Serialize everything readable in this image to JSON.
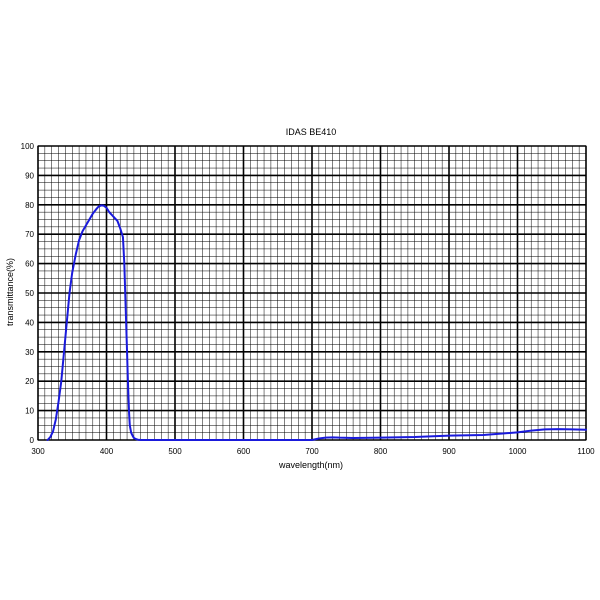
{
  "chart_data": {
    "type": "line",
    "title": "IDAS BE410",
    "xlabel": "wavelength(nm)",
    "ylabel": "transmittance(%)",
    "xlim": [
      300,
      1100
    ],
    "ylim": [
      0,
      100
    ],
    "x_ticks": [
      "300",
      "400",
      "500",
      "600",
      "700",
      "800",
      "900",
      "1000",
      "1100"
    ],
    "y_ticks": [
      "0",
      "10",
      "20",
      "30",
      "40",
      "50",
      "60",
      "70",
      "80",
      "90",
      "100"
    ],
    "grid": true,
    "legend": "none",
    "colors": {
      "line": "#1a1adb",
      "grid_minor": "#000000",
      "grid_major": "#000000",
      "background": "#ffffff"
    },
    "series": [
      {
        "x": [
          314,
          318,
          322,
          326,
          330,
          334,
          338,
          342,
          346,
          350,
          355,
          360,
          365,
          370,
          375,
          380,
          385,
          388,
          392,
          396,
          400,
          404,
          408,
          412,
          416,
          420,
          424,
          426,
          428,
          430,
          431,
          432,
          433,
          434,
          436,
          438,
          440,
          443,
          446,
          450,
          500,
          600,
          700,
          710,
          720,
          730,
          740,
          760,
          800,
          850,
          900,
          950,
          1000,
          1020,
          1040,
          1060,
          1080,
          1100
        ],
        "y": [
          0,
          1,
          3,
          7,
          13,
          20,
          30,
          40,
          50,
          57,
          63,
          68,
          71,
          73,
          75,
          77,
          78.5,
          79.3,
          79.8,
          79.7,
          79,
          77.5,
          76.5,
          75.5,
          74.5,
          72,
          69,
          60,
          45,
          30,
          22,
          15,
          9,
          5,
          2.5,
          1.5,
          0.7,
          0.3,
          0.1,
          0,
          0,
          0,
          0,
          0.5,
          0.8,
          0.9,
          0.8,
          0.7,
          0.8,
          1.0,
          1.5,
          1.7,
          2.6,
          3.2,
          3.6,
          3.7,
          3.6,
          3.5
        ]
      }
    ]
  }
}
